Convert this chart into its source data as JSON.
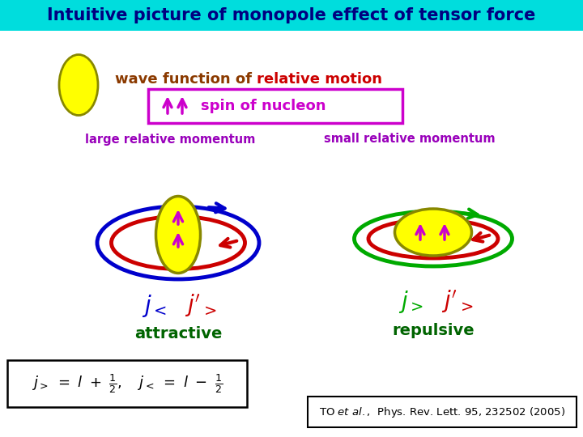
{
  "title": "Intuitive picture of monopole effect of tensor force",
  "title_bg": "#00dddd",
  "title_color": "#000080",
  "bg_color": "#ffffff",
  "yellow_fill": "#ffff00",
  "yellow_edge": "#888800",
  "magenta": "#cc00cc",
  "blue_orbit": "#0000cc",
  "red_orbit": "#cc0000",
  "green_orbit": "#00aa00",
  "dark_brown": "#8b3a00",
  "dark_green": "#006400",
  "purple_label": "#9900bb",
  "label_large": "large relative momentum",
  "label_small": "small relative momentum",
  "label_attractive": "attractive",
  "label_repulsive": "repulsive"
}
